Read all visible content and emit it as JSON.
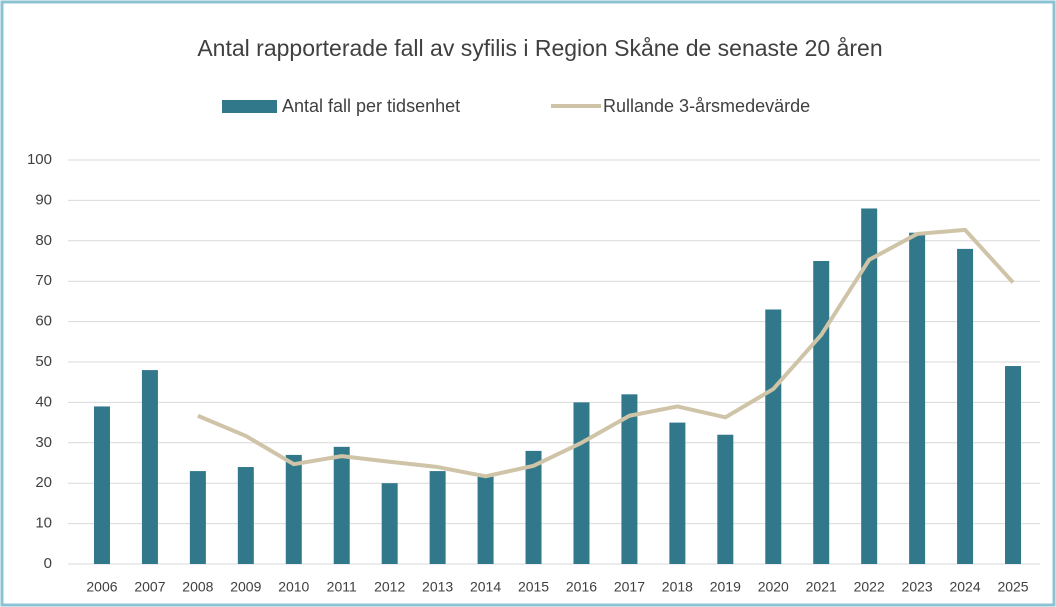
{
  "chart_data": {
    "type": "combo",
    "title": "Antal rapporterade fall av syfilis i Region Skåne de senaste 20 åren",
    "categories": [
      "2006",
      "2007",
      "2008",
      "2009",
      "2010",
      "2011",
      "2012",
      "2013",
      "2014",
      "2015",
      "2016",
      "2017",
      "2018",
      "2019",
      "2020",
      "2021",
      "2022",
      "2023",
      "2024",
      "2025"
    ],
    "series": [
      {
        "name": "Antal fall per tidsenhet",
        "type": "bar",
        "color": "#31788a",
        "values": [
          39,
          48,
          23,
          24,
          27,
          29,
          20,
          23,
          22,
          28,
          40,
          42,
          35,
          32,
          63,
          75,
          88,
          82,
          78,
          49
        ]
      },
      {
        "name": "Rullande 3-årsmedevärde",
        "type": "line",
        "color": "#cfc4a7",
        "values": [
          null,
          null,
          36.7,
          31.7,
          24.7,
          26.7,
          25.3,
          24,
          21.7,
          24.3,
          30,
          36.7,
          39,
          36.3,
          43.3,
          56.7,
          75.3,
          81.7,
          82.7,
          69.7
        ]
      }
    ],
    "ylim": [
      0,
      100
    ],
    "yticks": [
      0,
      10,
      20,
      30,
      40,
      50,
      60,
      70,
      80,
      90,
      100
    ],
    "grid": true,
    "legend": "top"
  }
}
